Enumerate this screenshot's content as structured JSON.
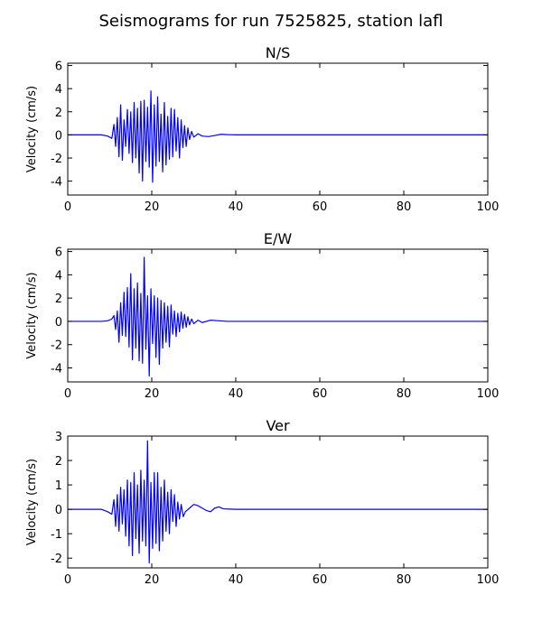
{
  "figure": {
    "title": "Seismograms for run 7525825, station lafl"
  },
  "chart_data": [
    {
      "type": "line",
      "title": "N/S",
      "xlabel": "",
      "ylabel": "Velocity (cm/s)",
      "xlim": [
        0,
        100
      ],
      "ylim": [
        -5.2,
        6.2
      ],
      "xticks": [
        0,
        20,
        40,
        60,
        80,
        100
      ],
      "yticks": [
        -4,
        -2,
        0,
        2,
        4,
        6
      ],
      "grid": false,
      "color": "#0000ff",
      "x": [
        0,
        8,
        9.5,
        10.5,
        11.0,
        11.4,
        11.8,
        12.2,
        12.6,
        13.0,
        13.4,
        13.8,
        14.2,
        14.6,
        15.0,
        15.4,
        15.8,
        16.2,
        16.6,
        17.0,
        17.4,
        17.8,
        18.2,
        18.6,
        19.0,
        19.4,
        19.8,
        20.2,
        20.6,
        21.0,
        21.4,
        21.8,
        22.2,
        22.6,
        23.0,
        23.4,
        23.8,
        24.2,
        24.6,
        25.0,
        25.4,
        25.8,
        26.2,
        26.6,
        27.0,
        27.4,
        27.8,
        28.2,
        28.6,
        29.0,
        29.5,
        30.0,
        31.0,
        32.0,
        33.5,
        35.0,
        36.5,
        38.0,
        40.0,
        50.0,
        100.0
      ],
      "values": [
        0,
        0,
        -0.1,
        -0.3,
        0.9,
        -1.0,
        1.5,
        -1.9,
        2.6,
        -2.2,
        1.3,
        -1.0,
        2.2,
        -1.6,
        2.0,
        -2.4,
        2.8,
        -2.0,
        2.3,
        -3.3,
        2.9,
        -4.0,
        3.0,
        -2.3,
        2.4,
        -2.8,
        3.8,
        -4.1,
        2.6,
        -2.7,
        3.3,
        -2.3,
        1.8,
        -3.2,
        2.8,
        -2.6,
        1.6,
        -2.1,
        2.3,
        -1.9,
        2.2,
        -1.4,
        1.5,
        -2.0,
        1.3,
        -1.1,
        0.8,
        -1.0,
        0.6,
        -0.4,
        0.3,
        -0.2,
        0.1,
        -0.1,
        -0.15,
        -0.05,
        0.05,
        0.02,
        0,
        0,
        0
      ]
    },
    {
      "type": "line",
      "title": "E/W",
      "xlabel": "",
      "ylabel": "Velocity (cm/s)",
      "xlim": [
        0,
        100
      ],
      "ylim": [
        -5.2,
        6.2
      ],
      "xticks": [
        0,
        20,
        40,
        60,
        80,
        100
      ],
      "yticks": [
        -4,
        -2,
        0,
        2,
        4,
        6
      ],
      "grid": false,
      "color": "#0000ff",
      "x": [
        0,
        8,
        9.5,
        10.5,
        11.0,
        11.4,
        11.8,
        12.2,
        12.6,
        13.0,
        13.4,
        13.8,
        14.2,
        14.6,
        15.0,
        15.4,
        15.8,
        16.2,
        16.6,
        17.0,
        17.4,
        17.8,
        18.2,
        18.6,
        19.0,
        19.4,
        19.8,
        20.2,
        20.6,
        21.0,
        21.4,
        21.8,
        22.2,
        22.6,
        23.0,
        23.4,
        23.8,
        24.2,
        24.6,
        25.0,
        25.4,
        25.8,
        26.2,
        26.6,
        27.0,
        27.4,
        27.8,
        28.2,
        28.6,
        29.0,
        29.5,
        30.0,
        31.0,
        32.0,
        34.0,
        36.0,
        38.0,
        40.0,
        50.0,
        100.0
      ],
      "values": [
        0,
        0,
        0.05,
        0.2,
        0.5,
        -0.7,
        0.9,
        -1.8,
        1.6,
        -1.2,
        2.5,
        -1.3,
        2.9,
        -2.2,
        4.1,
        -3.3,
        2.8,
        -2.3,
        3.3,
        -3.4,
        2.4,
        -3.6,
        5.5,
        -2.4,
        2.2,
        -4.7,
        2.8,
        -1.9,
        2.2,
        -3.1,
        2.0,
        -3.7,
        1.8,
        -2.3,
        1.6,
        -1.8,
        1.3,
        -2.2,
        1.4,
        -1.1,
        0.9,
        -1.3,
        0.7,
        -0.9,
        0.8,
        -0.6,
        0.6,
        -0.5,
        0.4,
        -0.3,
        0.2,
        -0.2,
        0.1,
        -0.1,
        0.1,
        0.05,
        0,
        0,
        0,
        0
      ]
    },
    {
      "type": "line",
      "title": "Ver",
      "xlabel": "",
      "ylabel": "Velocity (cm/s)",
      "xlim": [
        0,
        100
      ],
      "ylim": [
        -2.4,
        3.0
      ],
      "xticks": [
        0,
        20,
        40,
        60,
        80,
        100
      ],
      "yticks": [
        -2,
        -1,
        0,
        1,
        2,
        3
      ],
      "grid": false,
      "color": "#0000ff",
      "x": [
        0,
        8,
        9.5,
        10.5,
        11.0,
        11.4,
        11.8,
        12.2,
        12.6,
        13.0,
        13.4,
        13.8,
        14.2,
        14.6,
        15.0,
        15.4,
        15.8,
        16.2,
        16.6,
        17.0,
        17.4,
        17.8,
        18.2,
        18.6,
        19.0,
        19.4,
        19.8,
        20.2,
        20.6,
        21.0,
        21.4,
        21.8,
        22.2,
        22.6,
        23.0,
        23.4,
        23.8,
        24.2,
        24.6,
        25.0,
        25.4,
        25.8,
        26.2,
        26.6,
        27.0,
        27.5,
        28.0,
        29.0,
        30.0,
        31.0,
        32.0,
        33.0,
        34.0,
        35.0,
        36.0,
        37.0,
        40.0,
        50.0,
        100.0
      ],
      "values": [
        0,
        0,
        -0.1,
        -0.2,
        0.4,
        -0.7,
        0.6,
        -0.9,
        0.9,
        -0.6,
        0.8,
        -1.1,
        1.2,
        -1.5,
        1.1,
        -1.9,
        1.5,
        -1.2,
        1.0,
        -1.8,
        1.6,
        -1.3,
        1.2,
        -1.5,
        2.8,
        -2.2,
        1.1,
        -1.6,
        1.5,
        -1.4,
        1.5,
        -1.7,
        0.9,
        -1.3,
        1.2,
        -0.9,
        0.7,
        -1.0,
        0.8,
        -0.5,
        0.6,
        -0.7,
        0.3,
        -0.4,
        0.2,
        -0.3,
        -0.1,
        0.05,
        0.2,
        0.15,
        0.05,
        -0.05,
        -0.1,
        0.05,
        0.1,
        0.02,
        0,
        0,
        0
      ]
    }
  ]
}
